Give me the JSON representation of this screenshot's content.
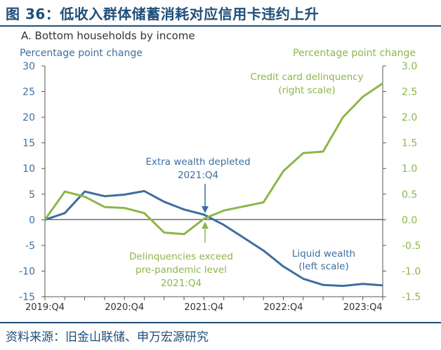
{
  "figure": {
    "title": "图 36：低收入群体储蓄消耗对应信用卡违约上升",
    "panel_title": "A. Bottom households by income",
    "source": "资料来源：旧金山联储、申万宏源研究"
  },
  "colors": {
    "liquid_wealth": "#3d6ea0",
    "delinquency": "#8db64a",
    "title": "#1f4e79"
  },
  "chart_data": {
    "type": "line",
    "x_labels": [
      "2019:Q4",
      "2020:Q4",
      "2021:Q4",
      "2022:Q4",
      "2023:Q4"
    ],
    "x_periods": [
      "2019:Q4",
      "2020:Q1",
      "2020:Q2",
      "2020:Q3",
      "2020:Q4",
      "2021:Q1",
      "2021:Q2",
      "2021:Q3",
      "2021:Q4",
      "2022:Q1",
      "2022:Q2",
      "2022:Q3",
      "2022:Q4",
      "2023:Q1",
      "2023:Q2",
      "2023:Q3",
      "2023:Q4",
      "2024:Q1"
    ],
    "left_axis": {
      "label": "Percentage point change",
      "range": [
        -15,
        30
      ],
      "ticks": [
        "30",
        "25",
        "20",
        "15",
        "10",
        "5",
        "0",
        "-5",
        "-10",
        "-15"
      ]
    },
    "right_axis": {
      "label": "Percentage point change",
      "range": [
        -1.5,
        3.0
      ],
      "ticks": [
        "3.0",
        "2.5",
        "2.0",
        "1.5",
        "1.0",
        "0.5",
        "0.0",
        "-0.5",
        "-1.0",
        "-1.5"
      ]
    },
    "series": [
      {
        "name": "Liquid wealth",
        "axis": "left",
        "values": [
          0,
          1.3,
          5.5,
          4.6,
          4.9,
          5.6,
          3.5,
          2.0,
          1.0,
          -1.0,
          -3.5,
          -6.0,
          -9.1,
          -11.5,
          -12.7,
          -12.9,
          -12.5,
          -12.8
        ]
      },
      {
        "name": "Credit card delinquency",
        "axis": "right",
        "values": [
          0,
          0.55,
          0.45,
          0.25,
          0.23,
          0.13,
          -0.25,
          -0.28,
          0.02,
          0.18,
          0.26,
          0.34,
          0.95,
          1.3,
          1.33,
          2.0,
          2.4,
          2.66
        ]
      }
    ],
    "annotations": {
      "extra_wealth_line1": "Extra wealth depleted",
      "extra_wealth_line2": "2021:Q4",
      "delinq_line1": "Delinquencies exceed",
      "delinq_line2": "pre-pandemic level",
      "delinq_line3": "2021:Q4",
      "credit_label_line1": "Credit card delinquency",
      "credit_label_line2": "(right scale)",
      "liquid_label_line1": "Liquid wealth",
      "liquid_label_line2": "(left scale)"
    }
  }
}
